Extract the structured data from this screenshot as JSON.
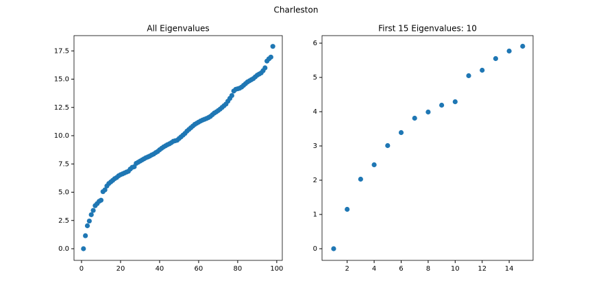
{
  "title": "Charleston",
  "chart_data": [
    {
      "type": "scatter",
      "title": "All Eigenvalues",
      "color": "#1f77b4",
      "x": [
        1,
        2,
        3,
        4,
        5,
        6,
        7,
        8,
        9,
        10,
        11,
        12,
        13,
        14,
        15,
        16,
        17,
        18,
        19,
        20,
        21,
        22,
        23,
        24,
        25,
        26,
        27,
        28,
        29,
        30,
        31,
        32,
        33,
        34,
        35,
        36,
        37,
        38,
        39,
        40,
        41,
        42,
        43,
        44,
        45,
        46,
        47,
        48,
        49,
        50,
        51,
        52,
        53,
        54,
        55,
        56,
        57,
        58,
        59,
        60,
        61,
        62,
        63,
        64,
        65,
        66,
        67,
        68,
        69,
        70,
        71,
        72,
        73,
        74,
        75,
        76,
        77,
        78,
        79,
        80,
        81,
        82,
        83,
        84,
        85,
        86,
        87,
        88,
        89,
        90,
        91,
        92,
        93,
        94,
        95,
        96,
        97,
        98
      ],
      "values": [
        0,
        1.15,
        2.03,
        2.45,
        3.01,
        3.39,
        3.81,
        3.99,
        4.19,
        4.29,
        5.05,
        5.21,
        5.55,
        5.77,
        5.91,
        6.05,
        6.2,
        6.3,
        6.45,
        6.55,
        6.62,
        6.7,
        6.78,
        6.85,
        7.05,
        7.2,
        7.25,
        7.55,
        7.65,
        7.75,
        7.85,
        7.95,
        8.05,
        8.12,
        8.2,
        8.3,
        8.38,
        8.5,
        8.6,
        8.75,
        8.88,
        9.0,
        9.1,
        9.2,
        9.28,
        9.38,
        9.5,
        9.55,
        9.6,
        9.75,
        9.9,
        10.05,
        10.2,
        10.4,
        10.55,
        10.7,
        10.85,
        11.0,
        11.1,
        11.2,
        11.3,
        11.38,
        11.45,
        11.52,
        11.6,
        11.7,
        11.85,
        12.0,
        12.1,
        12.22,
        12.35,
        12.5,
        12.65,
        12.8,
        13.05,
        13.3,
        13.55,
        13.95,
        14.1,
        14.15,
        14.2,
        14.3,
        14.45,
        14.6,
        14.75,
        14.85,
        14.95,
        15.05,
        15.2,
        15.35,
        15.45,
        15.55,
        15.75,
        16.0,
        16.6,
        16.8,
        16.95,
        17.9
      ],
      "xlim": [
        -3.85,
        102.85
      ],
      "xticks": [
        0,
        20,
        40,
        60,
        80,
        100
      ],
      "ylim": [
        -1.03,
        18.85
      ],
      "yticks": [
        {
          "value": 0,
          "label": "0.0"
        },
        2.5,
        {
          "value": 5,
          "label": "5.0"
        },
        7.5,
        {
          "value": 10,
          "label": "10.0"
        },
        12.5,
        {
          "value": 15,
          "label": "15.0"
        },
        17.5
      ]
    },
    {
      "type": "scatter",
      "title": "First 15 Eigenvalues: 10",
      "color": "#1f77b4",
      "x": [
        1,
        2,
        3,
        4,
        5,
        6,
        7,
        8,
        9,
        10,
        11,
        12,
        13,
        14,
        15
      ],
      "values": [
        0,
        1.15,
        2.03,
        2.45,
        3.01,
        3.39,
        3.81,
        3.99,
        4.19,
        4.29,
        5.05,
        5.21,
        5.55,
        5.77,
        5.91
      ],
      "xlim": [
        0.14,
        15.77
      ],
      "xticks": [
        2,
        4,
        6,
        8,
        10,
        12,
        14
      ],
      "ylim": [
        -0.34,
        6.22
      ],
      "yticks": [
        0,
        1,
        2,
        3,
        4,
        5,
        6
      ]
    }
  ]
}
